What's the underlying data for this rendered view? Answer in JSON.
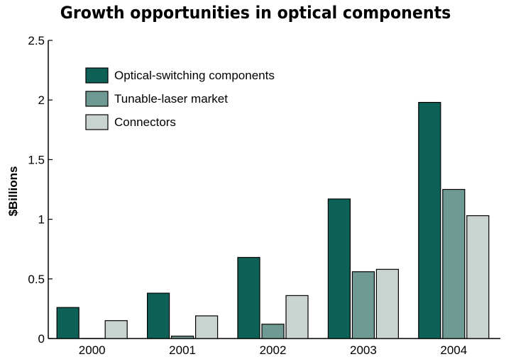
{
  "chart_data": {
    "type": "bar",
    "title": "Growth opportunities in optical components",
    "ylabel": "$Billions",
    "xlabel": "",
    "categories": [
      "2000",
      "2001",
      "2002",
      "2003",
      "2004"
    ],
    "ylim": [
      0,
      2.5
    ],
    "yticks": [
      "0",
      "0.5",
      "1",
      "1.5",
      "2",
      "2.5"
    ],
    "ytick_values": [
      0,
      0.5,
      1,
      1.5,
      2,
      2.5
    ],
    "grid": false,
    "legend_position": "top-left",
    "series": [
      {
        "name": "Optical-switching components",
        "color": "#0d6157",
        "values": [
          0.26,
          0.38,
          0.68,
          1.17,
          1.98
        ]
      },
      {
        "name": "Tunable-laser market",
        "color": "#6f9a93",
        "values": [
          0.0,
          0.02,
          0.12,
          0.56,
          1.25
        ]
      },
      {
        "name": "Connectors",
        "color": "#c9d3d0",
        "values": [
          0.15,
          0.19,
          0.36,
          0.58,
          1.03
        ]
      }
    ]
  }
}
